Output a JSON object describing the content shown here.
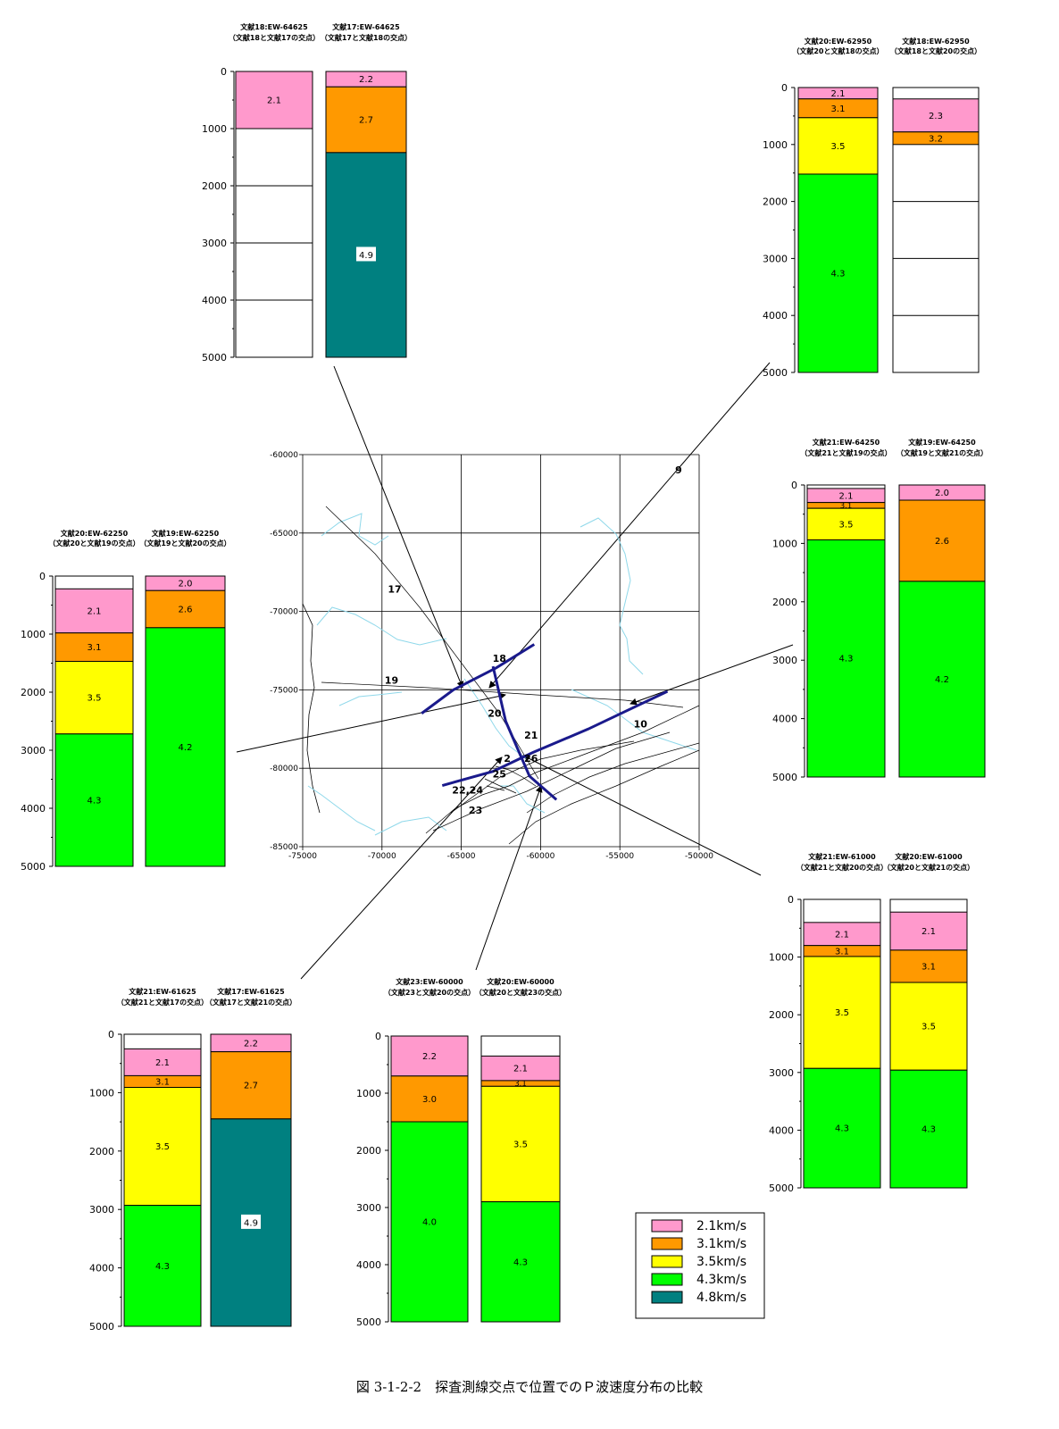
{
  "colors": {
    "2.1": "#ff99cc",
    "2.2": "#ff99cc",
    "2.3": "#ff99cc",
    "2.0": "#ff99cc",
    "3.0": "#ff9900",
    "3.1": "#ff9900",
    "3.2": "#ff9900",
    "2.6": "#ff9900",
    "2.7": "#ff9900",
    "3.5": "#ffff00",
    "4.0": "#00ff00",
    "4.2": "#00ff00",
    "4.3": "#00ff00",
    "4.9": "#008080"
  },
  "caption": "図 3-1-2-2　探査測線交点で位置でのＰ波速度分布の比較",
  "legend": {
    "items": [
      {
        "label": "2.1km/s",
        "color": "#ff99cc"
      },
      {
        "label": "3.1km/s",
        "color": "#ff9900"
      },
      {
        "label": "3.5km/s",
        "color": "#ffff00"
      },
      {
        "label": "4.3km/s",
        "color": "#00ff00"
      },
      {
        "label": "4.8km/s",
        "color": "#008080"
      }
    ]
  },
  "chart_data": [
    {
      "type": "map",
      "x_ticks": [
        "-75000",
        "-70000",
        "-65000",
        "-60000",
        "-55000",
        "-50000"
      ],
      "y_ticks": [
        "-60000",
        "-65000",
        "-70000",
        "-75000",
        "-80000",
        "-85000"
      ],
      "xlim": [
        -75000,
        -50000
      ],
      "ylim": [
        -85000,
        -60000
      ],
      "line_labels": [
        {
          "text": "9",
          "x": -51300,
          "y": -61200
        },
        {
          "text": "17",
          "x": -69200,
          "y": -68800
        },
        {
          "text": "18",
          "x": -62600,
          "y": -73200
        },
        {
          "text": "19",
          "x": -69400,
          "y": -74600
        },
        {
          "text": "20",
          "x": -62900,
          "y": -76700
        },
        {
          "text": "21",
          "x": -60600,
          "y": -78100
        },
        {
          "text": "10",
          "x": -53700,
          "y": -77400
        },
        {
          "text": "2",
          "x": -62100,
          "y": -79600
        },
        {
          "text": "26",
          "x": -60600,
          "y": -79600
        },
        {
          "text": "25",
          "x": -62600,
          "y": -80600
        },
        {
          "text": "22,24",
          "x": -64600,
          "y": -81600
        },
        {
          "text": "23",
          "x": -64100,
          "y": -82900
        }
      ],
      "survey_lines": [
        {
          "name": "18",
          "points": [
            [
              -67500,
              -76500
            ],
            [
              -65500,
              -75000
            ],
            [
              -62800,
              -73600
            ],
            [
              -60400,
              -72100
            ]
          ]
        },
        {
          "name": "20",
          "points": [
            [
              -63000,
              -73500
            ],
            [
              -62200,
              -77000
            ],
            [
              -60700,
              -80500
            ],
            [
              -59000,
              -82000
            ]
          ]
        },
        {
          "name": "21",
          "points": [
            [
              -66200,
              -81100
            ],
            [
              -63000,
              -80200
            ],
            [
              -60500,
              -79000
            ],
            [
              -57000,
              -77500
            ],
            [
              -52000,
              -75100
            ]
          ]
        }
      ]
    },
    {
      "type": "table",
      "name": "columns-top-left",
      "ylim": [
        0,
        5000
      ],
      "yticks": [
        "0",
        "1000",
        "2000",
        "3000",
        "4000",
        "5000"
      ],
      "columns": [
        {
          "title": "文献18:EW-64625",
          "subtitle": "（文献18と文献17の交点）",
          "top": 0,
          "layers": [
            {
              "v": "2.1",
              "top": 0,
              "bottom": 1000
            }
          ],
          "lines": [
            1000,
            2000,
            3000,
            4000
          ]
        },
        {
          "title": "文献17:EW-64625",
          "subtitle": "（文献17と文献18の交点）",
          "top": 0,
          "layers": [
            {
              "v": "2.2",
              "top": 0,
              "bottom": 270
            },
            {
              "v": "2.7",
              "top": 270,
              "bottom": 1420
            },
            {
              "v": "4.9",
              "top": 1420,
              "bottom": 5000
            }
          ]
        }
      ]
    },
    {
      "type": "table",
      "name": "columns-top-right",
      "ylim": [
        0,
        5000
      ],
      "yticks": [
        "0",
        "1000",
        "2000",
        "3000",
        "4000",
        "5000"
      ],
      "columns": [
        {
          "title": "文献20:EW-62950",
          "subtitle": "（文献20と文献18の交点）",
          "top": 0,
          "layers": [
            {
              "v": "2.1",
              "top": 0,
              "bottom": 200
            },
            {
              "v": "3.1",
              "top": 200,
              "bottom": 530
            },
            {
              "v": "3.5",
              "top": 530,
              "bottom": 1520
            },
            {
              "v": "4.3",
              "top": 1520,
              "bottom": 5000
            }
          ]
        },
        {
          "title": "文献18:EW-62950",
          "subtitle": "（文献18と文献20の交点）",
          "top": 0,
          "layers": [
            {
              "v": "2.3",
              "top": 200,
              "bottom": 780
            },
            {
              "v": "3.2",
              "top": 780,
              "bottom": 1000
            }
          ],
          "lines": [
            2000,
            3000,
            4000
          ]
        }
      ]
    },
    {
      "type": "table",
      "name": "columns-middle-left",
      "ylim": [
        0,
        5000
      ],
      "yticks": [
        "0",
        "1000",
        "2000",
        "3000",
        "4000",
        "5000"
      ],
      "columns": [
        {
          "title": "文献20:EW-62250",
          "subtitle": "（文献20と文献19の交点）",
          "top": 0,
          "layers": [
            {
              "v": "2.1",
              "top": 220,
              "bottom": 980
            },
            {
              "v": "3.1",
              "top": 980,
              "bottom": 1470
            },
            {
              "v": "3.5",
              "top": 1470,
              "bottom": 2720
            },
            {
              "v": "4.3",
              "top": 2720,
              "bottom": 5000
            }
          ]
        },
        {
          "title": "文献19:EW-62250",
          "subtitle": "（文献19と文献20の交点）",
          "top": 0,
          "layers": [
            {
              "v": "2.0",
              "top": 0,
              "bottom": 250
            },
            {
              "v": "2.6",
              "top": 250,
              "bottom": 890
            },
            {
              "v": "4.2",
              "top": 890,
              "bottom": 5000
            }
          ]
        }
      ]
    },
    {
      "type": "table",
      "name": "columns-middle-right",
      "ylim": [
        0,
        5000
      ],
      "yticks": [
        "0",
        "1000",
        "2000",
        "3000",
        "4000",
        "5000"
      ],
      "columns": [
        {
          "title": "文献21:EW-64250",
          "subtitle": "（文献21と文献19の交点）",
          "top": 0,
          "layers": [
            {
              "v": "2.1",
              "top": 60,
              "bottom": 300
            },
            {
              "v": "3.1",
              "top": 300,
              "bottom": 400
            },
            {
              "v": "3.5",
              "top": 400,
              "bottom": 940
            },
            {
              "v": "4.3",
              "top": 940,
              "bottom": 5000
            }
          ]
        },
        {
          "title": "文献19:EW-64250",
          "subtitle": "（文献19と文献21の交点）",
          "top": 0,
          "layers": [
            {
              "v": "2.0",
              "top": 0,
              "bottom": 260
            },
            {
              "v": "2.6",
              "top": 260,
              "bottom": 1650
            },
            {
              "v": "4.2",
              "top": 1650,
              "bottom": 5000
            }
          ]
        }
      ]
    },
    {
      "type": "table",
      "name": "columns-bottom-right",
      "ylim": [
        0,
        5000
      ],
      "yticks": [
        "0",
        "1000",
        "2000",
        "3000",
        "4000",
        "5000"
      ],
      "columns": [
        {
          "title": "文献21:EW-61000",
          "subtitle": "（文献21と文献20の交点）",
          "top": 0,
          "layers": [
            {
              "v": "2.1",
              "top": 400,
              "bottom": 800
            },
            {
              "v": "3.1",
              "top": 800,
              "bottom": 990
            },
            {
              "v": "3.5",
              "top": 990,
              "bottom": 2930
            },
            {
              "v": "4.3",
              "top": 2930,
              "bottom": 5000
            }
          ]
        },
        {
          "title": "文献20:EW-61000",
          "subtitle": "（文献20と文献21の交点）",
          "top": 0,
          "layers": [
            {
              "v": "2.1",
              "top": 220,
              "bottom": 880
            },
            {
              "v": "3.1",
              "top": 880,
              "bottom": 1440
            },
            {
              "v": "3.5",
              "top": 1440,
              "bottom": 2960
            },
            {
              "v": "4.3",
              "top": 2960,
              "bottom": 5000
            }
          ]
        }
      ]
    },
    {
      "type": "table",
      "name": "columns-bottom-left",
      "ylim": [
        0,
        5000
      ],
      "yticks": [
        "0",
        "1000",
        "2000",
        "3000",
        "4000",
        "5000"
      ],
      "columns": [
        {
          "title": "文献21:EW-61625",
          "subtitle": "（文献21と文献17の交点）",
          "top": 0,
          "layers": [
            {
              "v": "2.1",
              "top": 250,
              "bottom": 710
            },
            {
              "v": "3.1",
              "top": 710,
              "bottom": 910
            },
            {
              "v": "3.5",
              "top": 910,
              "bottom": 2930
            },
            {
              "v": "4.3",
              "top": 2930,
              "bottom": 5000
            }
          ]
        },
        {
          "title": "文献17:EW-61625",
          "subtitle": "（文献17と文献21の交点）",
          "top": 0,
          "layers": [
            {
              "v": "2.2",
              "top": 0,
              "bottom": 300
            },
            {
              "v": "2.7",
              "top": 300,
              "bottom": 1450
            },
            {
              "v": "4.9",
              "top": 1450,
              "bottom": 5000
            }
          ]
        }
      ]
    },
    {
      "type": "table",
      "name": "columns-bottom-middle",
      "ylim": [
        0,
        5000
      ],
      "yticks": [
        "0",
        "1000",
        "2000",
        "3000",
        "4000",
        "5000"
      ],
      "columns": [
        {
          "title": "文献23:EW-60000",
          "subtitle": "（文献23と文献20の交点）",
          "top": 0,
          "layers": [
            {
              "v": "2.2",
              "top": 0,
              "bottom": 700
            },
            {
              "v": "3.0",
              "top": 700,
              "bottom": 1500
            },
            {
              "v": "4.0",
              "top": 1500,
              "bottom": 5000
            }
          ]
        },
        {
          "title": "文献20:EW-60000",
          "subtitle": "（文献20と文献23の交点）",
          "top": 0,
          "layers": [
            {
              "v": "2.1",
              "top": 350,
              "bottom": 780
            },
            {
              "v": "3.1",
              "top": 780,
              "bottom": 880
            },
            {
              "v": "3.5",
              "top": 880,
              "bottom": 2900
            },
            {
              "v": "4.3",
              "top": 2900,
              "bottom": 5000
            }
          ]
        }
      ]
    }
  ]
}
